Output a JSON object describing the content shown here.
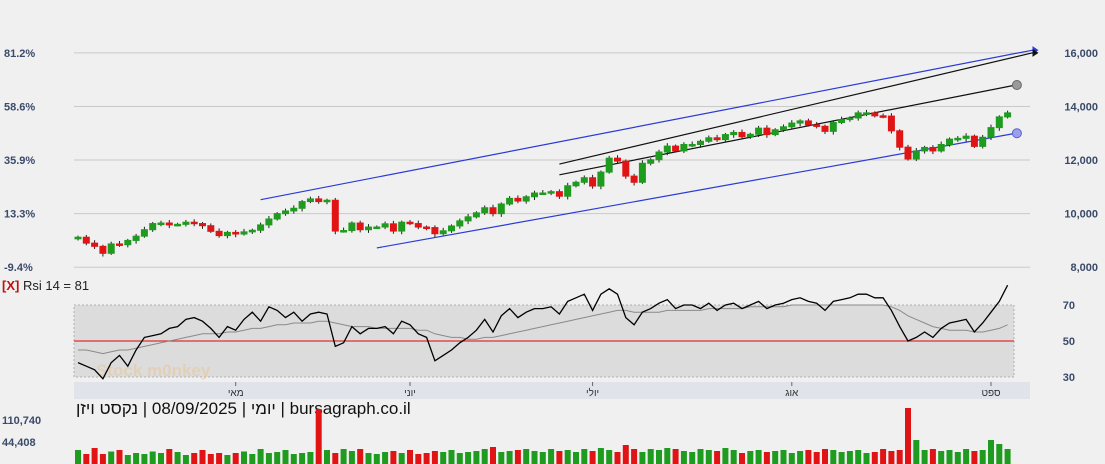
{
  "chart_data": [
    {
      "type": "candlestick",
      "left_axis_labels": [
        "81.2%",
        "58.6%",
        "35.9%",
        "13.3%",
        "-9.4%"
      ],
      "right_axis_labels": [
        "16,000",
        "14,000",
        "12,000",
        "10,000",
        "8,000"
      ],
      "right_axis_values": [
        16000,
        14000,
        12000,
        10000,
        8000
      ],
      "ylim": [
        7300,
        16300
      ],
      "n_candles": 113,
      "close": [
        9120,
        8900,
        8780,
        8520,
        8870,
        8840,
        9000,
        9160,
        9400,
        9630,
        9650,
        9580,
        9600,
        9680,
        9630,
        9550,
        9340,
        9180,
        9300,
        9240,
        9320,
        9380,
        9580,
        9800,
        10000,
        10100,
        10200,
        10450,
        10550,
        10450,
        10500,
        9350,
        9370,
        9650,
        9400,
        9500,
        9500,
        9620,
        9350,
        9680,
        9630,
        9500,
        9480,
        9250,
        9360,
        9540,
        9730,
        9880,
        10030,
        10220,
        10000,
        10360,
        10570,
        10470,
        10630,
        10770,
        10770,
        10820,
        10650,
        11040,
        11170,
        11340,
        11030,
        11550,
        12070,
        11960,
        11400,
        11170,
        11880,
        12010,
        12300,
        12520,
        12340,
        12580,
        12580,
        12700,
        12830,
        12760,
        12950,
        13030,
        12870,
        12960,
        13190,
        12950,
        13130,
        13240,
        13380,
        13460,
        13310,
        13260,
        13070,
        13400,
        13510,
        13570,
        13760,
        13760,
        13650,
        13640,
        13090,
        12480,
        12040,
        12340,
        12470,
        12340,
        12580,
        12780,
        12810,
        12890,
        12510,
        12850,
        13210,
        13610,
        13760
      ]
    },
    {
      "type": "line",
      "title": "[X] Rsi 14 = 81",
      "y_labels": [
        "70",
        "50",
        "30"
      ],
      "ylim": [
        20,
        90
      ],
      "series": [
        {
          "values": [
            38,
            36,
            34,
            29,
            38,
            42,
            36,
            45,
            52,
            53,
            54,
            57,
            58,
            62,
            63,
            61,
            57,
            52,
            58,
            56,
            62,
            66,
            61,
            69,
            67,
            63,
            66,
            61,
            65,
            66,
            65,
            47,
            49,
            58,
            54,
            57,
            57,
            58,
            54,
            61,
            59,
            54,
            52,
            39,
            42,
            45,
            49,
            52,
            56,
            62,
            55,
            64,
            68,
            63,
            66,
            68,
            68,
            69,
            65,
            72,
            74,
            76,
            67,
            76,
            79,
            76,
            63,
            59,
            66,
            68,
            71,
            73,
            68,
            70,
            70,
            68,
            71,
            67,
            70,
            71,
            68,
            70,
            72,
            68,
            70,
            71,
            73,
            74,
            72,
            71,
            67,
            72,
            73,
            74,
            76,
            76,
            74,
            74,
            67,
            58,
            50,
            52,
            55,
            52,
            57,
            60,
            61,
            62,
            55,
            60,
            66,
            72,
            81
          ]
        },
        {
          "values": [
            45,
            45,
            44,
            43,
            44,
            45,
            45,
            46,
            47,
            48,
            49,
            50,
            51,
            52,
            53,
            54,
            54,
            54,
            55,
            55,
            56,
            57,
            57,
            58,
            59,
            59,
            60,
            60,
            60,
            61,
            61,
            60,
            59,
            58,
            58,
            58,
            57,
            57,
            57,
            57,
            57,
            56,
            56,
            54,
            53,
            52,
            52,
            51,
            51,
            52,
            52,
            53,
            54,
            55,
            56,
            57,
            58,
            59,
            60,
            61,
            62,
            63,
            64,
            65,
            66,
            67,
            67,
            66,
            66,
            66,
            66,
            67,
            67,
            67,
            67,
            67,
            68,
            68,
            68,
            68,
            68,
            69,
            69,
            69,
            69,
            69,
            70,
            70,
            70,
            70,
            70,
            70,
            70,
            70,
            70,
            70,
            70,
            70,
            69,
            67,
            64,
            62,
            60,
            58,
            57,
            56,
            56,
            56,
            55,
            55,
            56,
            57,
            59
          ]
        }
      ]
    },
    {
      "type": "bar",
      "y_labels": [
        "110,740",
        "44,408"
      ],
      "values": [
        28,
        20,
        32,
        20,
        25,
        28,
        18,
        22,
        20,
        25,
        22,
        30,
        24,
        18,
        22,
        28,
        20,
        22,
        18,
        22,
        25,
        20,
        30,
        22,
        24,
        28,
        20,
        22,
        24,
        110,
        28,
        22,
        30,
        26,
        30,
        22,
        20,
        24,
        26,
        22,
        28,
        20,
        22,
        26,
        24,
        28,
        22,
        24,
        26,
        30,
        34,
        24,
        26,
        28,
        30,
        26,
        24,
        30,
        26,
        28,
        24,
        30,
        26,
        32,
        28,
        24,
        38,
        30,
        24,
        30,
        28,
        32,
        30,
        26,
        24,
        30,
        28,
        26,
        32,
        28,
        22,
        26,
        28,
        24,
        26,
        28,
        22,
        26,
        28,
        24,
        30,
        28,
        24,
        26,
        28,
        22,
        24,
        30,
        26,
        28,
        112,
        48,
        28,
        30,
        26,
        28,
        24,
        30,
        26,
        28,
        48,
        40,
        30
      ]
    }
  ],
  "months": [
    "מאי",
    "יוני",
    "יולי",
    "אוג",
    "ספט"
  ],
  "caption": "יומי | 08/09/2025 | נקסט ויזן | bursagraph.co.il",
  "watermark": "Stock m0nkey",
  "colors": {
    "up": "#1f9b1f",
    "down": "#e01414",
    "channel_outer": "#2b3bd6",
    "channel_inner": "#111111",
    "rsi_mid": "#e03030"
  }
}
